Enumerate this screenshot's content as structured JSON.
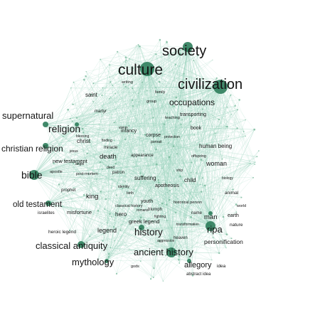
{
  "colors": {
    "background": "#ffffff",
    "edge": "#9fd4c0",
    "node": "#2e7d5b",
    "node_light": "#6fb394",
    "label": "#141414",
    "minor_label": "#5a5a5a"
  },
  "graph": {
    "type": "network",
    "labels": {
      "society": "society",
      "culture": "culture",
      "civilization": "civilization",
      "occupations": "occupations",
      "supernatural": "supernatural",
      "religion": "religion",
      "christian_religion": "christian religion",
      "bible": "bible",
      "old_testament": "old testament",
      "saint": "saint",
      "martyr": "martyr",
      "new_testament": "new testament",
      "christ": "christ",
      "death": "death",
      "miracle": "miracle",
      "infancy": "infancy",
      "corpse": "corpse",
      "human_being": "human being",
      "woman": "woman",
      "offspring": "offspring",
      "child": "child",
      "book": "book",
      "teaching": "teaching",
      "transporting": "transporting",
      "apotheosis": "apotheosis",
      "suffering": "suffering",
      "patron": "patron",
      "king": "king",
      "hero": "hero",
      "youth": "youth",
      "triumph": "triumph",
      "greek_legend": "greek legend",
      "legend": "legend",
      "misfortune": "misfortune",
      "prophet": "prophet",
      "israelites": "israelites",
      "heroic_legend": "heroic legend",
      "history": "history",
      "ripa": "ripa",
      "man": "man",
      "name": "name",
      "earth": "earth",
      "nature": "nature",
      "animal": "animal",
      "personification": "personification",
      "classical_antiquity": "classical antiquity",
      "ancient_history": "ancient history",
      "mythology": "mythology",
      "allegory": "allegory",
      "idea": "idea",
      "abstract_idea": "abstract idea",
      "gods": "gods",
      "heaven": "heaven",
      "world": "world",
      "historical_person": "historical person",
      "classical_history": "classical history",
      "romans": "romans",
      "fighting": "fighting",
      "transformation": "transformation",
      "aggression": "aggression",
      "group": "group",
      "family": "family",
      "writing": "writing",
      "vision": "vision",
      "finding": "finding",
      "blessing": "blessing",
      "apostle": "apostle",
      "post_mortem": "post-mortem",
      "angel": "angel",
      "jesus": "jesus",
      "appearance": "appearance",
      "portrait": "portrait",
      "protection": "protection",
      "birth": "birth",
      "biology": "biology",
      "ship": "ship",
      "deed": "deed",
      "identity": "identity"
    }
  }
}
